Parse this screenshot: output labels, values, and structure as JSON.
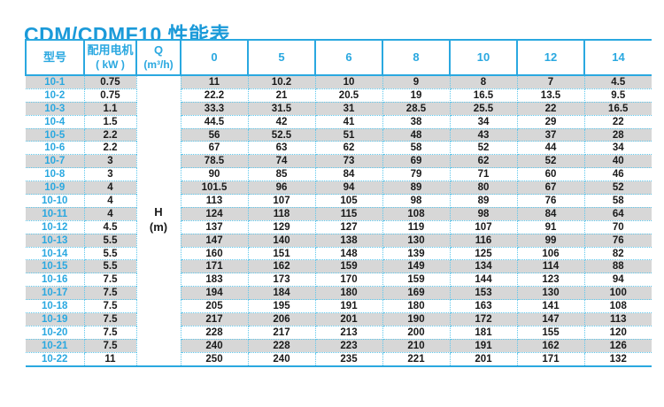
{
  "title": "CDM/CDMF10 性能表",
  "colors": {
    "accent_blue": "#2aa8e0",
    "title_blue": "#1b9ad9",
    "row_shade_gray": "#d7d7d7",
    "dotted_border": "#5ec7ec",
    "body_text": "#1a1a1a"
  },
  "table": {
    "headers": {
      "model": "型号",
      "motor_line1": "配用电机",
      "motor_line2": "( kW )",
      "q_line1": "Q",
      "q_line2": "(m³/h)",
      "flow": [
        "0",
        "5",
        "6",
        "8",
        "10",
        "12",
        "14"
      ]
    },
    "h_unit": {
      "line1": "H",
      "line2": "(m)"
    },
    "rows": [
      {
        "model": "10-1",
        "kw": "0.75",
        "values": [
          "11",
          "10.2",
          "10",
          "9",
          "8",
          "7",
          "4.5"
        ]
      },
      {
        "model": "10-2",
        "kw": "0.75",
        "values": [
          "22.2",
          "21",
          "20.5",
          "19",
          "16.5",
          "13.5",
          "9.5"
        ]
      },
      {
        "model": "10-3",
        "kw": "1.1",
        "values": [
          "33.3",
          "31.5",
          "31",
          "28.5",
          "25.5",
          "22",
          "16.5"
        ]
      },
      {
        "model": "10-4",
        "kw": "1.5",
        "values": [
          "44.5",
          "42",
          "41",
          "38",
          "34",
          "29",
          "22"
        ]
      },
      {
        "model": "10-5",
        "kw": "2.2",
        "values": [
          "56",
          "52.5",
          "51",
          "48",
          "43",
          "37",
          "28"
        ]
      },
      {
        "model": "10-6",
        "kw": "2.2",
        "values": [
          "67",
          "63",
          "62",
          "58",
          "52",
          "44",
          "34"
        ]
      },
      {
        "model": "10-7",
        "kw": "3",
        "values": [
          "78.5",
          "74",
          "73",
          "69",
          "62",
          "52",
          "40"
        ]
      },
      {
        "model": "10-8",
        "kw": "3",
        "values": [
          "90",
          "85",
          "84",
          "79",
          "71",
          "60",
          "46"
        ]
      },
      {
        "model": "10-9",
        "kw": "4",
        "values": [
          "101.5",
          "96",
          "94",
          "89",
          "80",
          "67",
          "52"
        ]
      },
      {
        "model": "10-10",
        "kw": "4",
        "values": [
          "113",
          "107",
          "105",
          "98",
          "89",
          "76",
          "58"
        ]
      },
      {
        "model": "10-11",
        "kw": "4",
        "values": [
          "124",
          "118",
          "115",
          "108",
          "98",
          "84",
          "64"
        ]
      },
      {
        "model": "10-12",
        "kw": "4.5",
        "values": [
          "137",
          "129",
          "127",
          "119",
          "107",
          "91",
          "70"
        ]
      },
      {
        "model": "10-13",
        "kw": "5.5",
        "values": [
          "147",
          "140",
          "138",
          "130",
          "116",
          "99",
          "76"
        ]
      },
      {
        "model": "10-14",
        "kw": "5.5",
        "values": [
          "160",
          "151",
          "148",
          "139",
          "125",
          "106",
          "82"
        ]
      },
      {
        "model": "10-15",
        "kw": "5.5",
        "values": [
          "171",
          "162",
          "159",
          "149",
          "134",
          "114",
          "88"
        ]
      },
      {
        "model": "10-16",
        "kw": "7.5",
        "values": [
          "183",
          "173",
          "170",
          "159",
          "144",
          "123",
          "94"
        ]
      },
      {
        "model": "10-17",
        "kw": "7.5",
        "values": [
          "194",
          "184",
          "180",
          "169",
          "153",
          "130",
          "100"
        ]
      },
      {
        "model": "10-18",
        "kw": "7.5",
        "values": [
          "205",
          "195",
          "191",
          "180",
          "163",
          "141",
          "108"
        ]
      },
      {
        "model": "10-19",
        "kw": "7.5",
        "values": [
          "217",
          "206",
          "201",
          "190",
          "172",
          "147",
          "113"
        ]
      },
      {
        "model": "10-20",
        "kw": "7.5",
        "values": [
          "228",
          "217",
          "213",
          "200",
          "181",
          "155",
          "120"
        ]
      },
      {
        "model": "10-21",
        "kw": "7.5",
        "values": [
          "240",
          "228",
          "223",
          "210",
          "191",
          "162",
          "126"
        ]
      },
      {
        "model": "10-22",
        "kw": "11",
        "values": [
          "250",
          "240",
          "235",
          "221",
          "201",
          "171",
          "132"
        ]
      }
    ]
  }
}
